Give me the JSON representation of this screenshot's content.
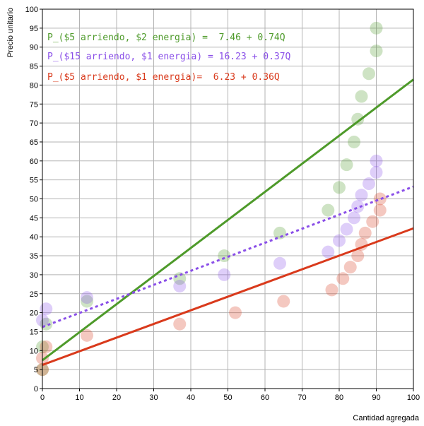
{
  "chart_data": {
    "type": "scatter",
    "xlabel": "Cantidad agregada",
    "ylabel": "Precio unitario",
    "xlim": [
      0,
      100
    ],
    "ylim": [
      0,
      100
    ],
    "x_ticks": [
      0,
      10,
      20,
      30,
      40,
      50,
      60,
      70,
      80,
      90,
      100
    ],
    "y_ticks": [
      0,
      5,
      10,
      15,
      20,
      25,
      30,
      35,
      40,
      45,
      50,
      55,
      60,
      65,
      70,
      75,
      80,
      85,
      90,
      95,
      100
    ],
    "grid": true,
    "series": [
      {
        "equation": "P_($5 arriendo, $2 energia) =  7.46 + 0.74Q",
        "color": "#4e9a2a",
        "fit": {
          "intercept": 7.46,
          "slope": 0.74,
          "style": "solid"
        },
        "points": [
          [
            0,
            5
          ],
          [
            0,
            11
          ],
          [
            1,
            17
          ],
          [
            12,
            23
          ],
          [
            37,
            29
          ],
          [
            49,
            35
          ],
          [
            64,
            41
          ],
          [
            77,
            47
          ],
          [
            80,
            53
          ],
          [
            82,
            59
          ],
          [
            84,
            65
          ],
          [
            85,
            71
          ],
          [
            86,
            77
          ],
          [
            88,
            83
          ],
          [
            90,
            89
          ],
          [
            90,
            95
          ]
        ]
      },
      {
        "equation": "P_($15 arriendo, $1 energia) = 16.23 + 0.37Q",
        "color": "#8a4fe8",
        "fit": {
          "intercept": 16.23,
          "slope": 0.37,
          "style": "dotted"
        },
        "points": [
          [
            0,
            18
          ],
          [
            1,
            21
          ],
          [
            12,
            24
          ],
          [
            37,
            27
          ],
          [
            49,
            30
          ],
          [
            64,
            33
          ],
          [
            77,
            36
          ],
          [
            80,
            39
          ],
          [
            82,
            42
          ],
          [
            84,
            45
          ],
          [
            85,
            48
          ],
          [
            86,
            51
          ],
          [
            88,
            54
          ],
          [
            90,
            57
          ],
          [
            90,
            60
          ]
        ]
      },
      {
        "equation": "P_($5 arriendo, $1 energia)=  6.23 + 0.36Q",
        "color": "#d93a1c",
        "fit": {
          "intercept": 6.23,
          "slope": 0.36,
          "style": "solid"
        },
        "points": [
          [
            0,
            5
          ],
          [
            0,
            8
          ],
          [
            1,
            11
          ],
          [
            12,
            14
          ],
          [
            37,
            17
          ],
          [
            52,
            20
          ],
          [
            65,
            23
          ],
          [
            78,
            26
          ],
          [
            81,
            29
          ],
          [
            83,
            32
          ],
          [
            85,
            35
          ],
          [
            86,
            38
          ],
          [
            87,
            41
          ],
          [
            89,
            44
          ],
          [
            91,
            47
          ],
          [
            91,
            50
          ]
        ]
      }
    ]
  }
}
